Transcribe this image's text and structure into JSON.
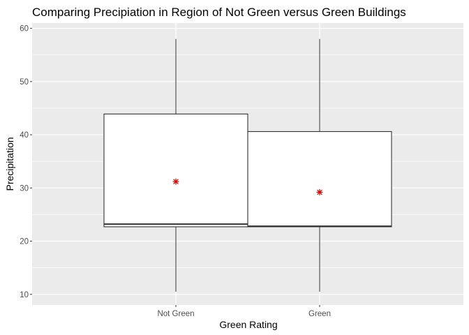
{
  "chart_data": {
    "type": "boxplot",
    "title": "Comparing Precipiation in Region of Not Green versus Green Buildings",
    "xlabel": "Green Rating",
    "ylabel": "Precipitation",
    "ylim": [
      8,
      61
    ],
    "yticks": [
      10,
      20,
      30,
      40,
      50,
      60
    ],
    "grid": true,
    "legend": "none",
    "categories": [
      "Not Green",
      "Green"
    ],
    "boxes": [
      {
        "category": "Not Green",
        "min": 10.5,
        "q1": 22.7,
        "median": 23.2,
        "q3": 43.9,
        "max": 58.0,
        "mean": 31.2
      },
      {
        "category": "Green",
        "min": 10.5,
        "q1": 22.7,
        "median": 22.8,
        "q3": 40.6,
        "max": 58.0,
        "mean": 29.2
      }
    ],
    "colors": {
      "panel": "#ebebeb",
      "grid": "#ffffff",
      "box_fill": "#ffffff",
      "box_stroke": "#333333",
      "mean_marker": "#cc0000"
    }
  }
}
